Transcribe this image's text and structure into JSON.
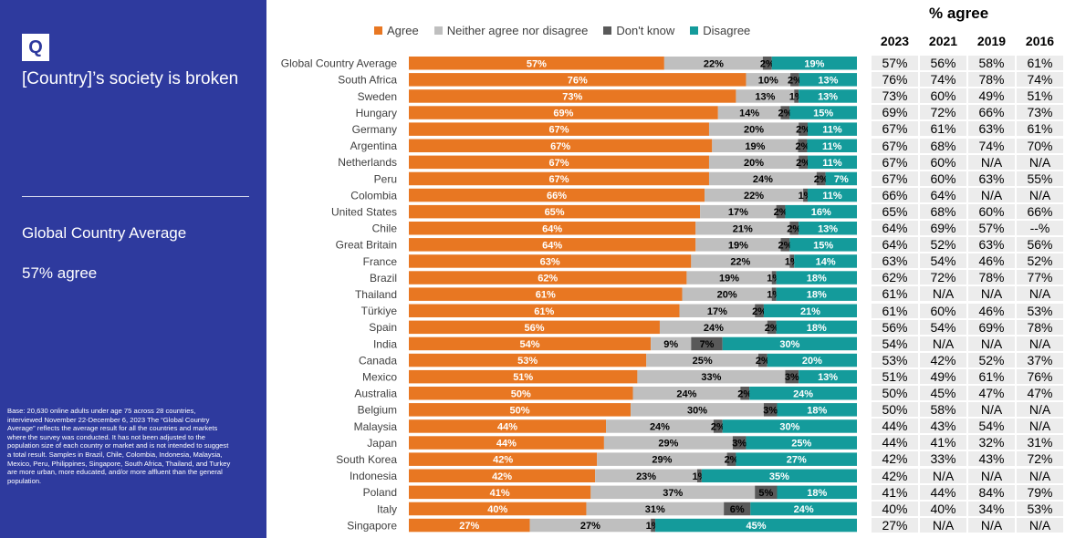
{
  "sidebar": {
    "logo_text": "Q",
    "title": "[Country]’s society is broken",
    "subtitle": "Global Country Average",
    "stat": "57% agree",
    "base_note": "Base: 20,630 online adults under age 75 across 28 countries, interviewed November 22-December 6, 2023\nThe “Global Country Average” reflects the average result for all the countries and markets where the survey was conducted. It has not been adjusted to the population size of each country or market and is not intended to suggest a total result. Samples in Brazil, Chile, Colombia, Indonesia, Malaysia, Mexico, Peru, Philippines, Singapore, South Africa, Thailand, and Turkey are more urban, more educated, and/or more affluent than the general population."
  },
  "colors": {
    "sidebar_bg": "#2e3a9e",
    "agree": "#e87722",
    "neither": "#bfbfbf",
    "dont_know": "#595959",
    "disagree": "#149b9b"
  },
  "chart_data": {
    "type": "bar",
    "orientation": "horizontal",
    "stacked": true,
    "percent_scale": [
      0,
      100
    ],
    "legend_position": "top",
    "series_names": [
      "Agree",
      "Neither agree nor disagree",
      "Don't know",
      "Disagree"
    ],
    "categories": [
      "Global Country Average",
      "South Africa",
      "Sweden",
      "Hungary",
      "Germany",
      "Argentina",
      "Netherlands",
      "Peru",
      "Colombia",
      "United States",
      "Chile",
      "Great Britain",
      "France",
      "Brazil",
      "Thailand",
      "Türkiye",
      "Spain",
      "India",
      "Canada",
      "Mexico",
      "Australia",
      "Belgium",
      "Malaysia",
      "Japan",
      "South Korea",
      "Indonesia",
      "Poland",
      "Italy",
      "Singapore"
    ],
    "series": [
      {
        "name": "Agree",
        "values": [
          57,
          76,
          73,
          69,
          67,
          67,
          67,
          67,
          66,
          65,
          64,
          64,
          63,
          62,
          61,
          61,
          56,
          54,
          53,
          51,
          50,
          50,
          44,
          44,
          42,
          42,
          41,
          40,
          27
        ]
      },
      {
        "name": "Neither agree nor disagree",
        "values": [
          22,
          10,
          13,
          14,
          20,
          19,
          20,
          24,
          22,
          17,
          21,
          19,
          22,
          19,
          20,
          17,
          24,
          9,
          25,
          33,
          24,
          30,
          24,
          29,
          29,
          23,
          37,
          31,
          27
        ]
      },
      {
        "name": "Don't know",
        "values": [
          2,
          2,
          1,
          2,
          2,
          2,
          2,
          2,
          1,
          2,
          2,
          2,
          1,
          1,
          1,
          2,
          2,
          7,
          2,
          3,
          2,
          3,
          2,
          3,
          2,
          1,
          5,
          6,
          1
        ]
      },
      {
        "name": "Disagree",
        "values": [
          19,
          13,
          13,
          15,
          11,
          11,
          11,
          7,
          11,
          16,
          13,
          15,
          14,
          18,
          18,
          21,
          18,
          30,
          20,
          13,
          24,
          18,
          30,
          25,
          27,
          35,
          18,
          24,
          45
        ]
      }
    ],
    "labels": [
      [
        "57%",
        "22%",
        "2%",
        "19%"
      ],
      [
        "76%",
        "10%",
        "2%",
        "13%"
      ],
      [
        "73%",
        "13%",
        "1%",
        "13%"
      ],
      [
        "69%",
        "14%",
        "2%",
        "15%"
      ],
      [
        "67%",
        "20%",
        "2%",
        "11%"
      ],
      [
        "67%",
        "19%",
        "2%",
        "11%"
      ],
      [
        "67%",
        "20%",
        "2%",
        "11%"
      ],
      [
        "67%",
        "24%",
        "2%",
        "7%"
      ],
      [
        "66%",
        "22%",
        "1%",
        "11%"
      ],
      [
        "65%",
        "17%",
        "2%",
        "16%"
      ],
      [
        "64%",
        "21%",
        "2%",
        "13%"
      ],
      [
        "64%",
        "19%",
        "2%",
        "15%"
      ],
      [
        "63%",
        "22%",
        "1%",
        "14%"
      ],
      [
        "62%",
        "19%",
        "1%",
        "18%"
      ],
      [
        "61%",
        "20%",
        "1%",
        "18%"
      ],
      [
        "61%",
        "17%",
        "2%",
        "21%"
      ],
      [
        "56%",
        "24%",
        "2%",
        "18%"
      ],
      [
        "54%",
        "9%",
        "7%",
        "30%"
      ],
      [
        "53%",
        "25%",
        "2%",
        "20%"
      ],
      [
        "51%",
        "33%",
        "3%",
        "13%"
      ],
      [
        "50%",
        "24%",
        "2%",
        "24%"
      ],
      [
        "50%",
        "30%",
        "3%",
        "18%"
      ],
      [
        "44%",
        "24%",
        "2%",
        "30%"
      ],
      [
        "44%",
        "29%",
        "3%",
        "25%"
      ],
      [
        "42%",
        "29%",
        "2%",
        "27%"
      ],
      [
        "42%",
        "23%",
        "1%",
        "35%"
      ],
      [
        "41%",
        "37%",
        "5%",
        "18%"
      ],
      [
        "40%",
        "31%",
        "6%",
        "24%"
      ],
      [
        "27%",
        "27%",
        "1%",
        "45%"
      ]
    ]
  },
  "trend_table": {
    "title": "% agree",
    "years": [
      "2023",
      "2021",
      "2019",
      "2016"
    ],
    "rows": [
      [
        "57%",
        "56%",
        "58%",
        "61%"
      ],
      [
        "76%",
        "74%",
        "78%",
        "74%"
      ],
      [
        "73%",
        "60%",
        "49%",
        "51%"
      ],
      [
        "69%",
        "72%",
        "66%",
        "73%"
      ],
      [
        "67%",
        "61%",
        "63%",
        "61%"
      ],
      [
        "67%",
        "68%",
        "74%",
        "70%"
      ],
      [
        "67%",
        "60%",
        "N/A",
        "N/A"
      ],
      [
        "67%",
        "60%",
        "63%",
        "55%"
      ],
      [
        "66%",
        "64%",
        "N/A",
        "N/A"
      ],
      [
        "65%",
        "68%",
        "60%",
        "66%"
      ],
      [
        "64%",
        "69%",
        "57%",
        "--%"
      ],
      [
        "64%",
        "52%",
        "63%",
        "56%"
      ],
      [
        "63%",
        "54%",
        "46%",
        "52%"
      ],
      [
        "62%",
        "72%",
        "78%",
        "77%"
      ],
      [
        "61%",
        "N/A",
        "N/A",
        "N/A"
      ],
      [
        "61%",
        "60%",
        "46%",
        "53%"
      ],
      [
        "56%",
        "54%",
        "69%",
        "78%"
      ],
      [
        "54%",
        "N/A",
        "N/A",
        "N/A"
      ],
      [
        "53%",
        "42%",
        "52%",
        "37%"
      ],
      [
        "51%",
        "49%",
        "61%",
        "76%"
      ],
      [
        "50%",
        "45%",
        "47%",
        "47%"
      ],
      [
        "50%",
        "58%",
        "N/A",
        "N/A"
      ],
      [
        "44%",
        "43%",
        "54%",
        "N/A"
      ],
      [
        "44%",
        "41%",
        "32%",
        "31%"
      ],
      [
        "42%",
        "33%",
        "43%",
        "72%"
      ],
      [
        "42%",
        "N/A",
        "N/A",
        "N/A"
      ],
      [
        "41%",
        "44%",
        "84%",
        "79%"
      ],
      [
        "40%",
        "40%",
        "34%",
        "53%"
      ],
      [
        "27%",
        "N/A",
        "N/A",
        "N/A"
      ]
    ]
  }
}
